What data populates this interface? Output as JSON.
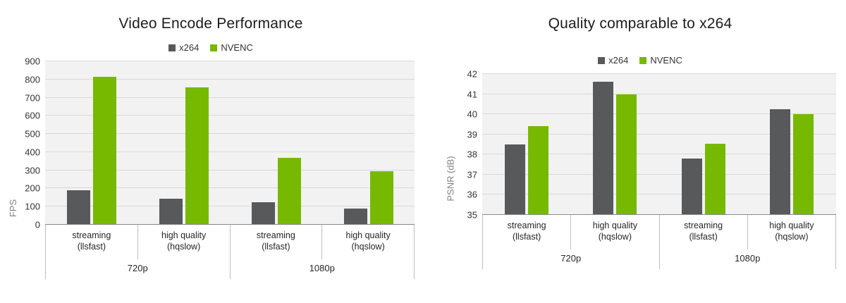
{
  "palette": {
    "x264": "#58595b",
    "nvenc": "#76b900",
    "plot_background": "#f2f2f2",
    "gridline": "#d9d9d9",
    "axis_line": "#8a8a8a",
    "separator": "#bfbfbf"
  },
  "chart_data": [
    {
      "type": "bar",
      "title": "Video Encode Performance",
      "ylabel": "FPS",
      "xlabel": "",
      "ylim": [
        0,
        900
      ],
      "ystep": 100,
      "grid": true,
      "legend_position": "top",
      "groups": [
        {
          "label": "720p"
        },
        {
          "label": "1080p"
        }
      ],
      "categories": [
        {
          "line1": "streaming",
          "line2": "(llsfast)",
          "group": "720p"
        },
        {
          "line1": "high quality",
          "line2": "(hqslow)",
          "group": "720p"
        },
        {
          "line1": "streaming",
          "line2": "(llsfast)",
          "group": "1080p"
        },
        {
          "line1": "high quality",
          "line2": "(hqslow)",
          "group": "1080p"
        }
      ],
      "series": [
        {
          "name": "x264",
          "color": "#58595b",
          "values": [
            190,
            145,
            125,
            90
          ]
        },
        {
          "name": "NVENC",
          "color": "#76b900",
          "values": [
            815,
            755,
            370,
            295
          ]
        }
      ]
    },
    {
      "type": "bar",
      "title": "Quality comparable to x264",
      "ylabel": "PSNR (dB)",
      "xlabel": "",
      "ylim": [
        35,
        42
      ],
      "ystep": 1,
      "grid": true,
      "legend_position": "top",
      "groups": [
        {
          "label": "720p"
        },
        {
          "label": "1080p"
        }
      ],
      "categories": [
        {
          "line1": "streaming",
          "line2": "(llsfast)",
          "group": "720p"
        },
        {
          "line1": "high quality",
          "line2": "(hqslow)",
          "group": "720p"
        },
        {
          "line1": "streaming",
          "line2": "(llsfast)",
          "group": "1080p"
        },
        {
          "line1": "high quality",
          "line2": "(hqslow)",
          "group": "1080p"
        }
      ],
      "series": [
        {
          "name": "x264",
          "color": "#58595b",
          "values": [
            38.5,
            41.6,
            37.8,
            40.25
          ]
        },
        {
          "name": "NVENC",
          "color": "#76b900",
          "values": [
            39.4,
            41.0,
            38.55,
            40.0
          ]
        }
      ]
    }
  ]
}
